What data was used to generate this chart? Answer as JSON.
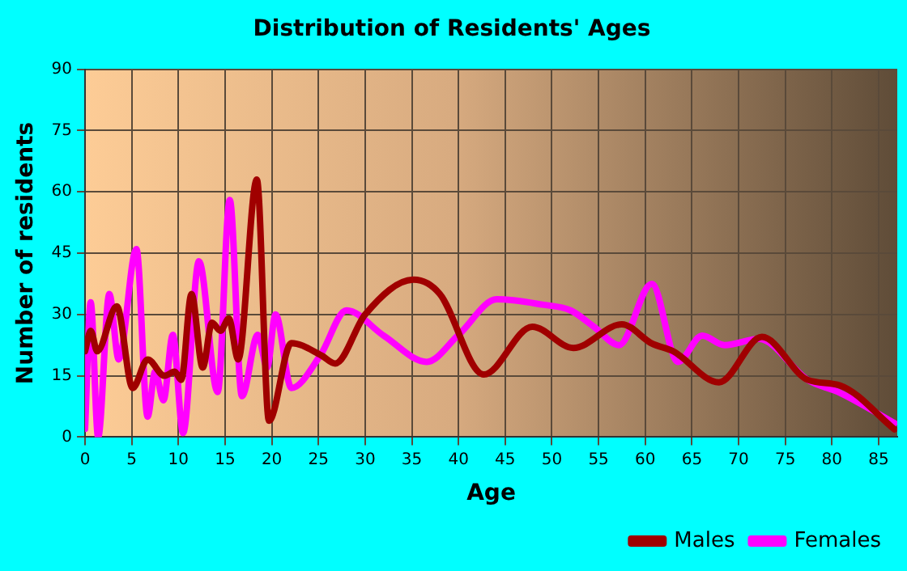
{
  "chart_data": {
    "type": "line",
    "title": "Distribution of Residents' Ages",
    "xlabel": "Age",
    "ylabel": "Number of residents",
    "xlim": [
      0,
      87
    ],
    "xticks": [
      0,
      5,
      10,
      15,
      20,
      25,
      30,
      35,
      40,
      45,
      50,
      55,
      60,
      65,
      70,
      75,
      80,
      85
    ],
    "ylim": [
      0,
      90
    ],
    "yticks": [
      0,
      15,
      30,
      45,
      60,
      75,
      90
    ],
    "grid": true,
    "legend": "bottom right",
    "marker": "none",
    "line_style": "solid",
    "series": [
      {
        "name": "Males",
        "color": "#a00000",
        "x": [
          0,
          0.6,
          1.3,
          3.4,
          5.1,
          6.7,
          8.5,
          9.6,
          10.3,
          11.4,
          12.6,
          13.6,
          14.5,
          15.4,
          16.4,
          18.4,
          19.7,
          22.1,
          25.3,
          26.8,
          30,
          35.2,
          38,
          42.7,
          47.9,
          52.3,
          57.5,
          60.7,
          63,
          67.9,
          72.5,
          77.4,
          80.9,
          86.7
        ],
        "values": [
          21,
          26,
          21,
          32,
          12,
          19,
          15,
          16,
          14,
          35,
          17,
          28,
          26,
          29,
          19,
          63,
          4,
          23,
          20,
          18,
          30,
          38.5,
          35,
          15.3,
          27,
          21.8,
          27.6,
          22.9,
          21,
          13.4,
          24.5,
          14,
          12.6,
          1.9
        ]
      },
      {
        "name": "Females",
        "color": "#ff00ff",
        "x": [
          0,
          0.6,
          1.4,
          2.6,
          3.6,
          5.5,
          6.7,
          7.5,
          8.4,
          9.4,
          10.5,
          12.2,
          14.2,
          15.5,
          16.8,
          18.5,
          19.5,
          20.4,
          22.1,
          25.2,
          28,
          32,
          36.6,
          40,
          44.1,
          49,
          52,
          54.5,
          57.2,
          60.7,
          63.5,
          66.1,
          68.5,
          72.2,
          77.4,
          80.9,
          86.7
        ],
        "values": [
          2,
          33,
          0,
          35,
          19,
          46,
          5,
          16,
          9,
          25,
          1,
          43,
          11,
          58,
          10,
          25,
          17,
          30,
          12,
          20,
          31,
          24.8,
          18.4,
          25,
          33.7,
          32.4,
          31,
          27,
          22.5,
          37.5,
          18.4,
          24.8,
          22.5,
          24,
          14,
          10.8,
          3.4
        ]
      }
    ]
  }
}
